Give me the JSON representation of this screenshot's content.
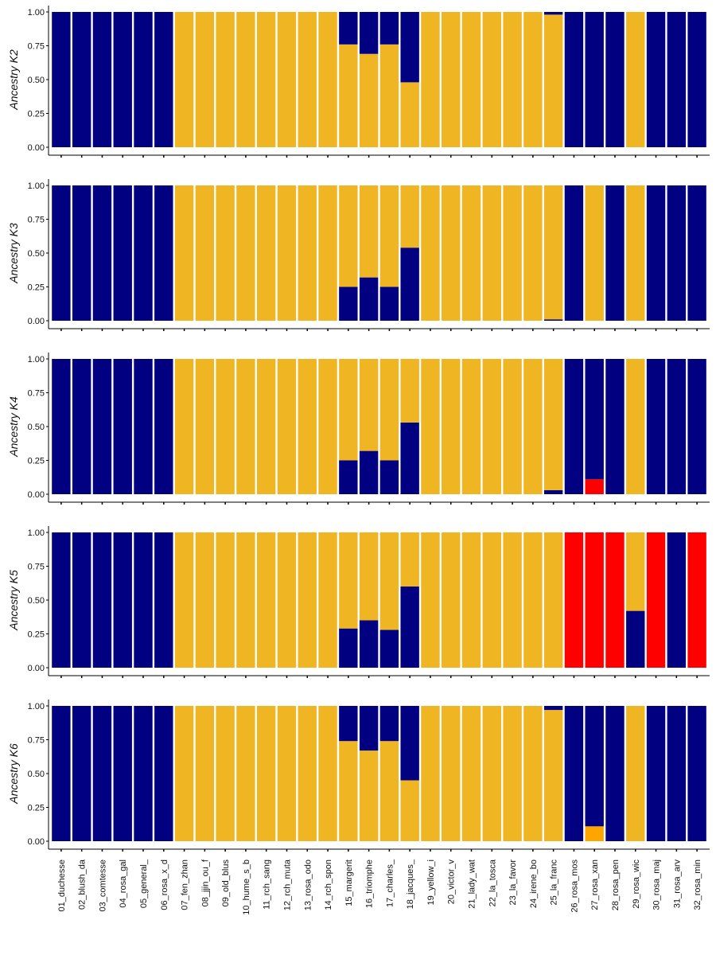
{
  "chart_data": {
    "type": "bar",
    "stacked": true,
    "colors": {
      "cluster1": "#000080",
      "cluster2": "#EFB523",
      "cluster3": "#FF0000",
      "cluster4": "#FFA500"
    },
    "categories": [
      "01_duchesse",
      "02_blush_da",
      "03_comtesse",
      "04_rosa_gal",
      "05_general_",
      "06_rosa_x_d",
      "07_fen_zhan",
      "08_jjin_ou_f",
      "09_old_blus",
      "10_hume_s_b",
      "11_rch_sang",
      "12_rch_muta",
      "13_rosa_odo",
      "14_rch_spon",
      "15_margerit",
      "16_triomphe",
      "17_charles_",
      "18_jacques_",
      "19_yellow_i",
      "20_victor_v",
      "21_lady_wat",
      "22_la_tosca",
      "23_la_favor",
      "24_irene_bo",
      "25_la_franc",
      "26_rosa_mos",
      "27_rosa_xan",
      "28_rosa_pen",
      "29_rosa_wic",
      "30_rosa_maj",
      "31_rosa_arv",
      "32_rosa_min"
    ],
    "y_ticks": [
      "0.00",
      "0.25",
      "0.50",
      "0.75",
      "1.00"
    ],
    "ylim": [
      0,
      1
    ],
    "panels": [
      {
        "ylabel": "Ancestry K2",
        "series": [
          {
            "color": "#EFB523",
            "values": [
              0,
              0,
              0,
              0,
              0,
              0,
              1,
              1,
              1,
              1,
              1,
              1,
              1,
              1,
              0.76,
              0.69,
              0.76,
              0.48,
              1,
              1,
              1,
              1,
              1,
              1,
              0.98,
              0,
              0,
              0,
              1,
              0,
              0,
              0
            ]
          },
          {
            "color": "#000080",
            "values": [
              1,
              1,
              1,
              1,
              1,
              1,
              0,
              0,
              0,
              0,
              0,
              0,
              0,
              0,
              0.24,
              0.31,
              0.24,
              0.52,
              0,
              0,
              0,
              0,
              0,
              0,
              0.02,
              1,
              1,
              1,
              0,
              1,
              1,
              1
            ]
          }
        ]
      },
      {
        "ylabel": "Ancestry K3",
        "series": [
          {
            "color": "#000080",
            "values": [
              1,
              1,
              1,
              1,
              1,
              1,
              0,
              0,
              0,
              0,
              0,
              0,
              0,
              0,
              0.25,
              0.32,
              0.25,
              0.54,
              0,
              0,
              0,
              0,
              0,
              0,
              0.01,
              1,
              0,
              1,
              0,
              1,
              1,
              1
            ]
          },
          {
            "color": "#EFB523",
            "values": [
              0,
              0,
              0,
              0,
              0,
              0,
              1,
              1,
              1,
              1,
              1,
              1,
              1,
              1,
              0.75,
              0.68,
              0.75,
              0.46,
              1,
              1,
              1,
              1,
              1,
              1,
              0.99,
              0,
              1,
              0,
              1,
              0,
              0,
              0
            ]
          }
        ]
      },
      {
        "ylabel": "Ancestry K4",
        "series": [
          {
            "color": "#FF0000",
            "values": [
              0,
              0,
              0,
              0,
              0,
              0,
              0,
              0,
              0,
              0,
              0,
              0,
              0,
              0,
              0,
              0,
              0,
              0,
              0,
              0,
              0,
              0,
              0,
              0,
              0,
              0,
              0.11,
              0,
              0,
              0,
              0,
              0
            ]
          },
          {
            "color": "#000080",
            "values": [
              1,
              1,
              1,
              1,
              1,
              1,
              0,
              0,
              0,
              0,
              0,
              0,
              0,
              0,
              0.25,
              0.32,
              0.25,
              0.53,
              0,
              0,
              0,
              0,
              0,
              0,
              0.03,
              1,
              0.89,
              1,
              0,
              1,
              1,
              1
            ]
          },
          {
            "color": "#EFB523",
            "values": [
              0,
              0,
              0,
              0,
              0,
              0,
              1,
              1,
              1,
              1,
              1,
              1,
              1,
              1,
              0.75,
              0.68,
              0.75,
              0.47,
              1,
              1,
              1,
              1,
              1,
              1,
              0.97,
              0,
              0,
              0,
              1,
              0,
              0,
              0
            ]
          }
        ]
      },
      {
        "ylabel": "Ancestry K5",
        "series": [
          {
            "color": "#000080",
            "values": [
              1,
              1,
              1,
              1,
              1,
              1,
              0,
              0,
              0,
              0,
              0,
              0,
              0,
              0,
              0.29,
              0.35,
              0.28,
              0.6,
              0,
              0,
              0,
              0,
              0,
              0,
              0,
              0,
              0,
              0,
              0.42,
              0,
              1,
              0
            ]
          },
          {
            "color": "#EFB523",
            "values": [
              0,
              0,
              0,
              0,
              0,
              0,
              1,
              1,
              1,
              1,
              1,
              1,
              1,
              1,
              0.71,
              0.65,
              0.72,
              0.4,
              1,
              1,
              1,
              1,
              1,
              1,
              1,
              0,
              0,
              0,
              0.58,
              0,
              0,
              0
            ]
          },
          {
            "color": "#FF0000",
            "values": [
              0,
              0,
              0,
              0,
              0,
              0,
              0,
              0,
              0,
              0,
              0,
              0,
              0,
              0,
              0,
              0,
              0,
              0,
              0,
              0,
              0,
              0,
              0,
              0,
              0,
              1,
              1,
              1,
              0,
              1,
              0,
              1
            ]
          }
        ]
      },
      {
        "ylabel": "Ancestry K6",
        "series": [
          {
            "color": "#FFA500",
            "values": [
              0,
              0,
              0,
              0,
              0,
              0,
              0,
              0,
              0,
              0,
              0,
              0,
              0,
              0,
              0,
              0,
              0,
              0,
              0,
              0,
              0,
              0,
              0,
              0,
              0,
              0,
              0.11,
              0,
              0,
              0,
              0,
              0
            ]
          },
          {
            "color": "#EFB523",
            "values": [
              0,
              0,
              0,
              0,
              0,
              0,
              1,
              1,
              1,
              1,
              1,
              1,
              1,
              1,
              0.74,
              0.67,
              0.74,
              0.45,
              1,
              1,
              1,
              1,
              1,
              1,
              0.97,
              0,
              0,
              0,
              1,
              0,
              0,
              0
            ]
          },
          {
            "color": "#000080",
            "values": [
              1,
              1,
              1,
              1,
              1,
              1,
              0,
              0,
              0,
              0,
              0,
              0,
              0,
              0,
              0.26,
              0.33,
              0.26,
              0.55,
              0,
              0,
              0,
              0,
              0,
              0,
              0.03,
              1,
              0.89,
              1,
              0,
              1,
              1,
              1
            ]
          }
        ]
      }
    ]
  }
}
